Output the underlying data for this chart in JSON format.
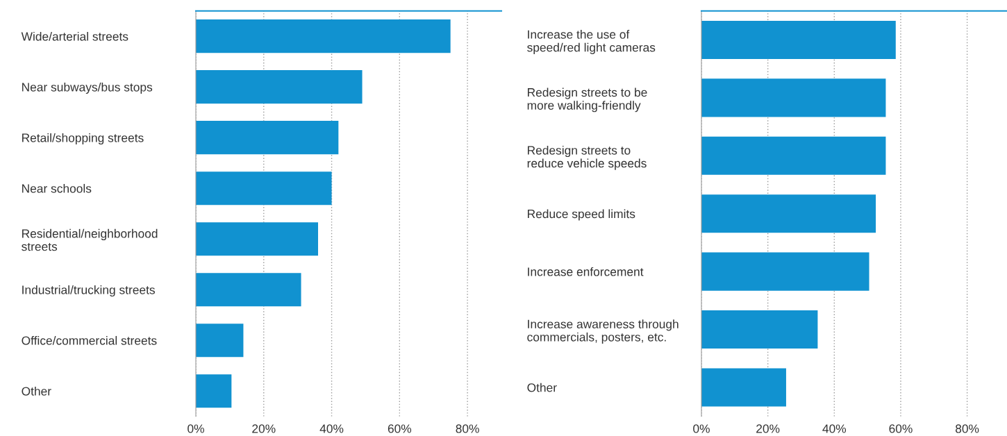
{
  "chart_data": [
    {
      "type": "bar",
      "orientation": "horizontal",
      "categories": [
        "Wide/arterial streets",
        "Near subways/bus stops",
        "Retail/shopping streets",
        "Near schools",
        "Residential/neighborhood\nstreets",
        "Industrial/trucking streets",
        "Office/commercial streets",
        "Other"
      ],
      "values": [
        75,
        49,
        42,
        40,
        36,
        31,
        14,
        10.5
      ],
      "color": "#1192d0",
      "xlim": [
        0,
        90
      ],
      "xticks": [
        {
          "value": 0,
          "label": "0%"
        },
        {
          "value": 20,
          "label": "20%"
        },
        {
          "value": 40,
          "label": "40%"
        },
        {
          "value": 60,
          "label": "60%"
        },
        {
          "value": 80,
          "label": "80%"
        }
      ],
      "grid": "x"
    },
    {
      "type": "bar",
      "orientation": "horizontal",
      "categories": [
        "Increase the use of\nspeed/red light cameras",
        "Redesign streets to be\nmore walking-friendly",
        "Redesign streets to\nreduce vehicle speeds",
        "Reduce speed limits",
        "Increase enforcement",
        "Increase awareness through\ncommercials, posters, etc.",
        "Other"
      ],
      "values": [
        58.5,
        55.5,
        55.5,
        52.5,
        50.5,
        35,
        25.5
      ],
      "color": "#1192d0",
      "xlim": [
        0,
        92
      ],
      "xticks": [
        {
          "value": 0,
          "label": "0%"
        },
        {
          "value": 20,
          "label": "20%"
        },
        {
          "value": 40,
          "label": "40%"
        },
        {
          "value": 60,
          "label": "60%"
        },
        {
          "value": 80,
          "label": "80%"
        }
      ],
      "grid": "x"
    }
  ]
}
